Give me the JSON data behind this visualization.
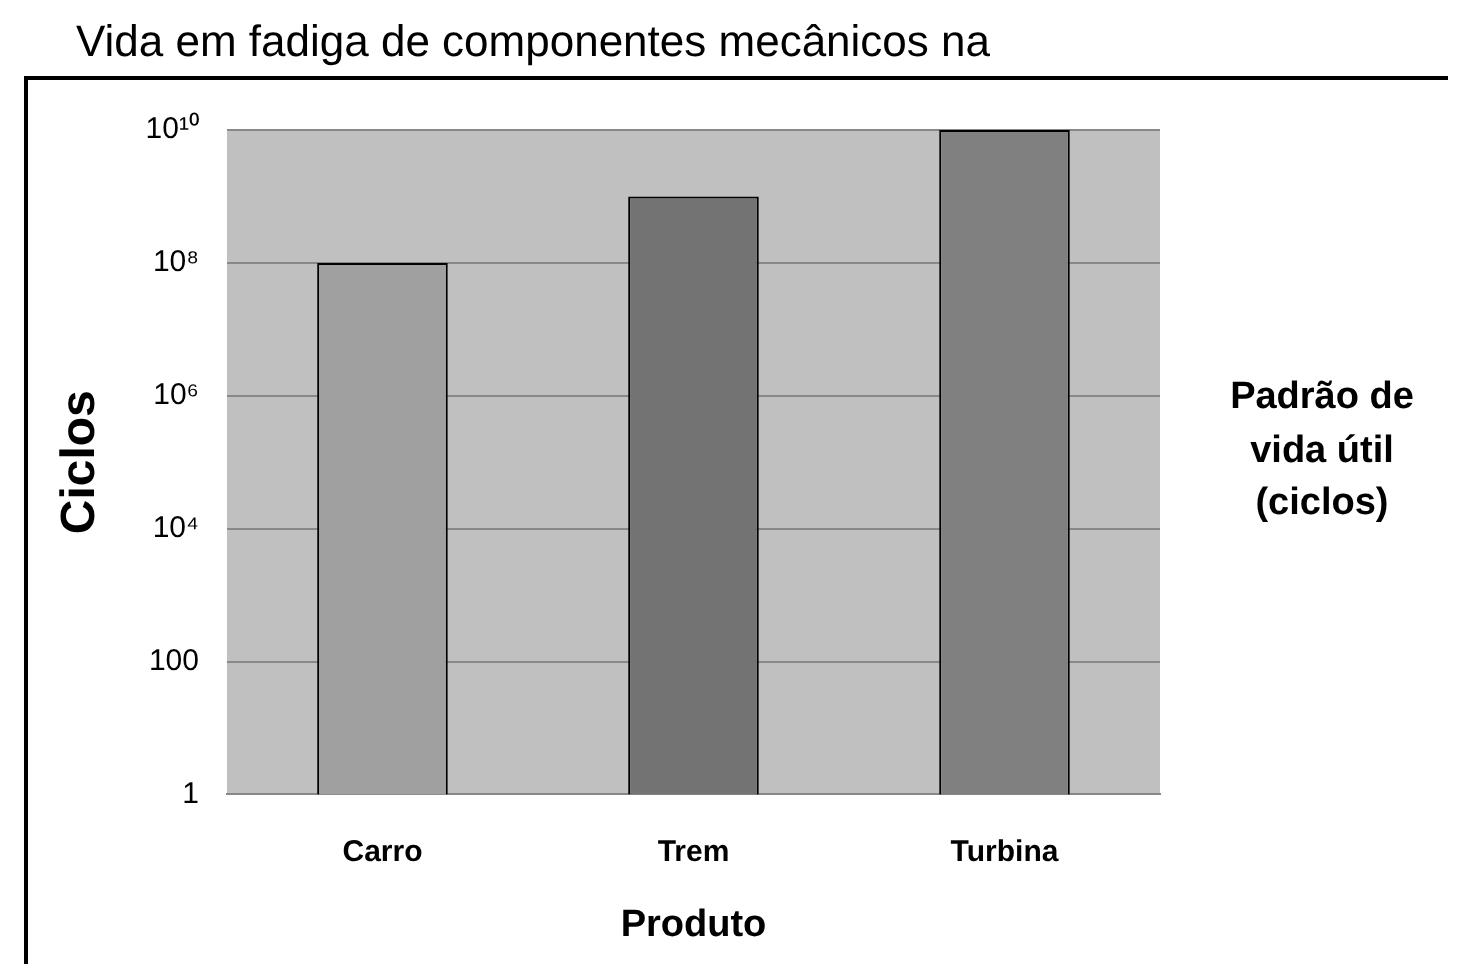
{
  "chart_data": {
    "type": "bar",
    "title": "Vida em fadiga de componentes mecânicos na",
    "xlabel": "Produto",
    "ylabel": "Ciclos",
    "legend_title": "Padrão de vida útil (ciclos)",
    "categories": [
      "Carro",
      "Trem",
      "Turbina"
    ],
    "values": [
      100000000,
      1000000000,
      10000000000
    ],
    "colors": [
      "#a0a0a0",
      "#737373",
      "#808080"
    ],
    "log": "y",
    "ylim": [
      1,
      10000000000
    ],
    "yticks": [
      1,
      100,
      {
        "value": 10000,
        "label": "10⁴"
      },
      {
        "value": 1000000,
        "label": "10⁶"
      },
      {
        "value": 100000000,
        "label": "10⁸"
      },
      {
        "value": 10000000000,
        "label": "10¹⁰"
      }
    ],
    "grid": "y"
  }
}
